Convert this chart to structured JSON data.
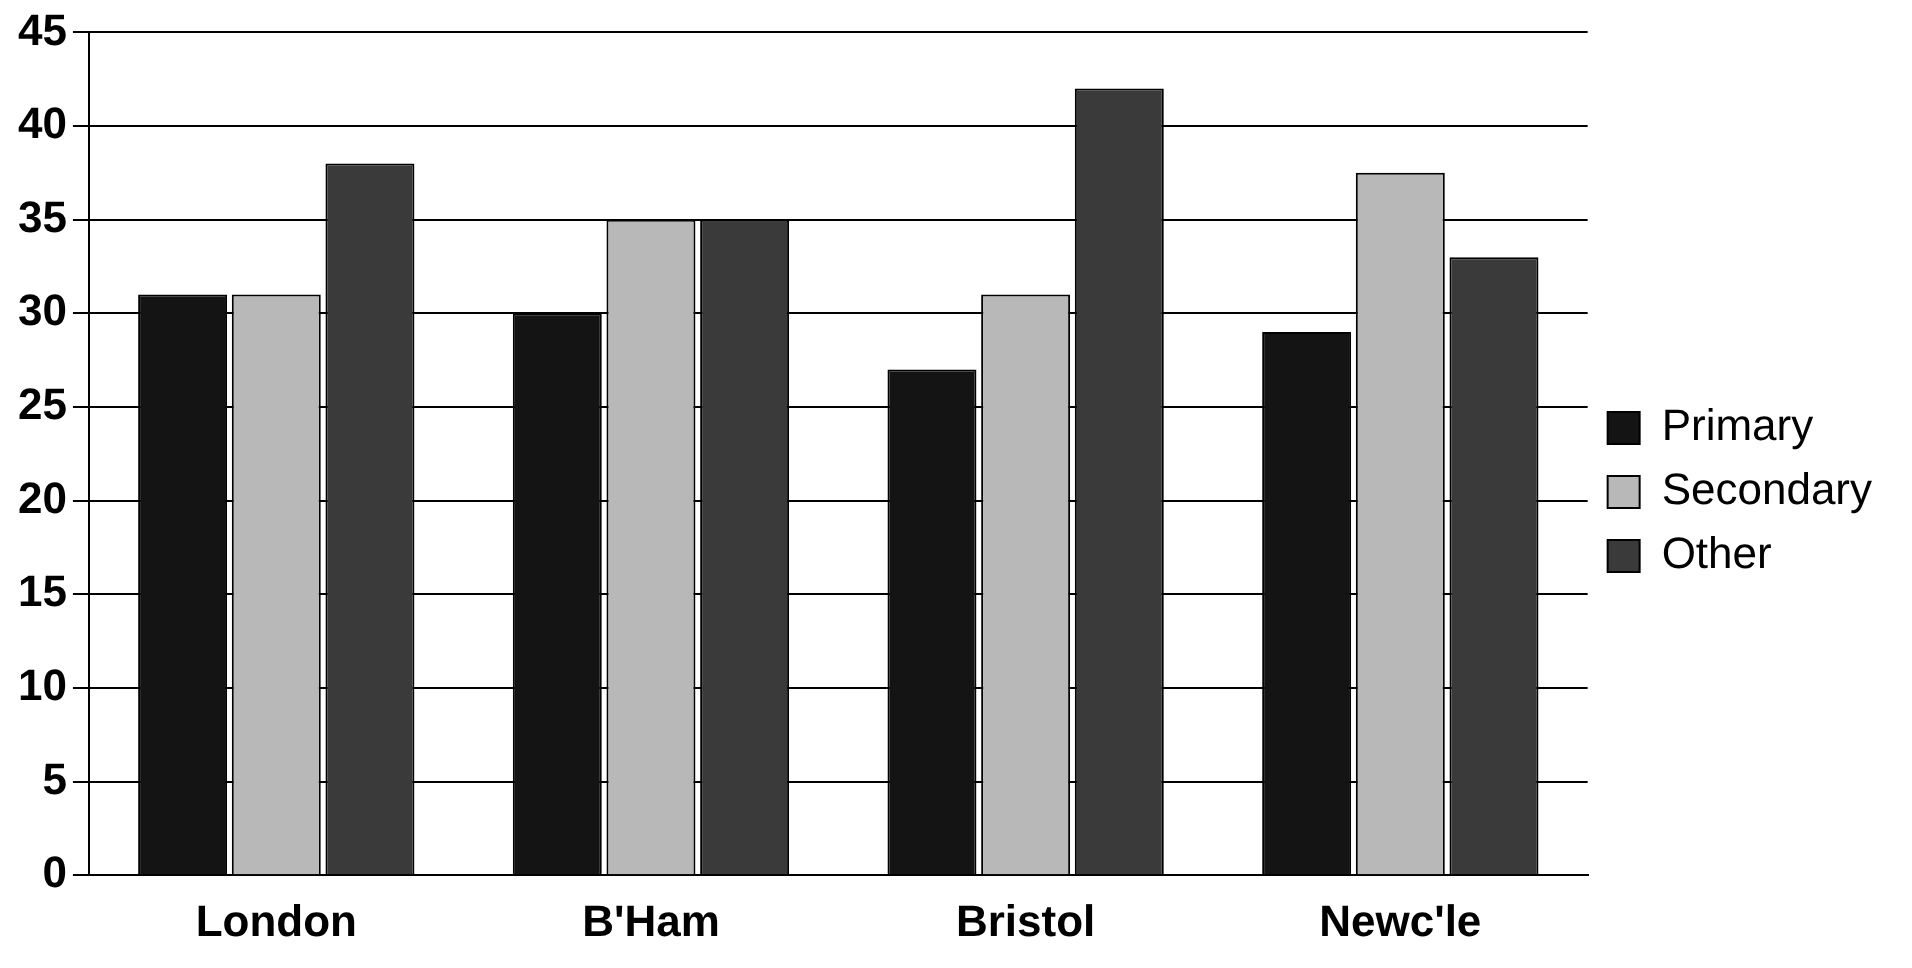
{
  "chart_data": {
    "type": "bar",
    "categories": [
      "London",
      "B'Ham",
      "Bristol",
      "Newc'le"
    ],
    "series": [
      {
        "name": "Primary",
        "color": "#141414",
        "values": [
          31,
          30,
          27,
          29
        ]
      },
      {
        "name": "Secondary",
        "color": "#b8b8b8",
        "values": [
          31,
          35,
          31,
          37.5
        ]
      },
      {
        "name": "Other",
        "color": "#3a3a3a",
        "values": [
          38,
          35,
          42,
          33
        ]
      }
    ],
    "ylim": [
      0,
      45
    ],
    "yticks": [
      0,
      5,
      10,
      15,
      20,
      25,
      30,
      35,
      40,
      45
    ],
    "grid": "y",
    "legend": "right"
  }
}
